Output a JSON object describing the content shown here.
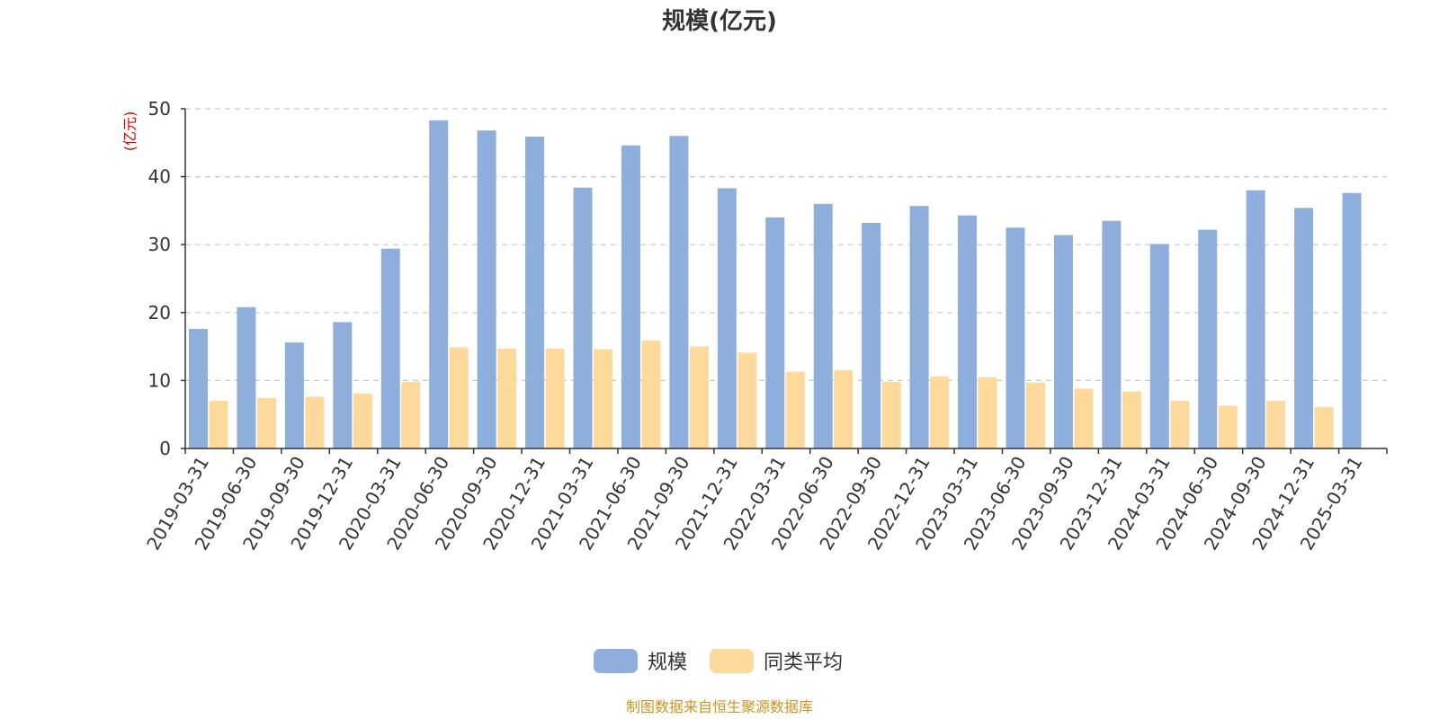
{
  "chart_data": {
    "type": "bar",
    "title": "规模(亿元)",
    "y_unit": "(亿元)",
    "ylim": [
      0,
      50
    ],
    "yticks": [
      0,
      10,
      20,
      30,
      40,
      50
    ],
    "grid": true,
    "legend_position": "bottom-center",
    "categories": [
      "2019-03-31",
      "2019-06-30",
      "2019-09-30",
      "2019-12-31",
      "2020-03-31",
      "2020-06-30",
      "2020-09-30",
      "2020-12-31",
      "2021-03-31",
      "2021-06-30",
      "2021-09-30",
      "2021-12-31",
      "2022-03-31",
      "2022-06-30",
      "2022-09-30",
      "2022-12-31",
      "2023-03-31",
      "2023-06-30",
      "2023-09-30",
      "2023-12-31",
      "2024-03-31",
      "2024-06-30",
      "2024-09-30",
      "2024-12-31",
      "2025-03-31"
    ],
    "series": [
      {
        "name": "规模",
        "color": "#8eaedb",
        "values": [
          17.6,
          20.8,
          15.6,
          18.6,
          29.4,
          48.3,
          46.8,
          45.9,
          38.4,
          44.6,
          46.0,
          38.3,
          34.0,
          36.0,
          33.2,
          35.7,
          34.3,
          32.5,
          31.4,
          33.5,
          30.1,
          32.2,
          38.0,
          35.4,
          37.6
        ]
      },
      {
        "name": "同类平均",
        "color": "#fdd99b",
        "values": [
          7.0,
          7.4,
          7.6,
          8.1,
          9.8,
          14.9,
          14.7,
          14.7,
          14.6,
          15.9,
          15.0,
          14.1,
          11.3,
          11.5,
          9.8,
          10.6,
          10.5,
          9.7,
          8.8,
          8.4,
          7.0,
          6.3,
          7.0,
          6.1,
          null
        ]
      }
    ],
    "source_note": "制图数据来自恒生聚源数据库"
  }
}
